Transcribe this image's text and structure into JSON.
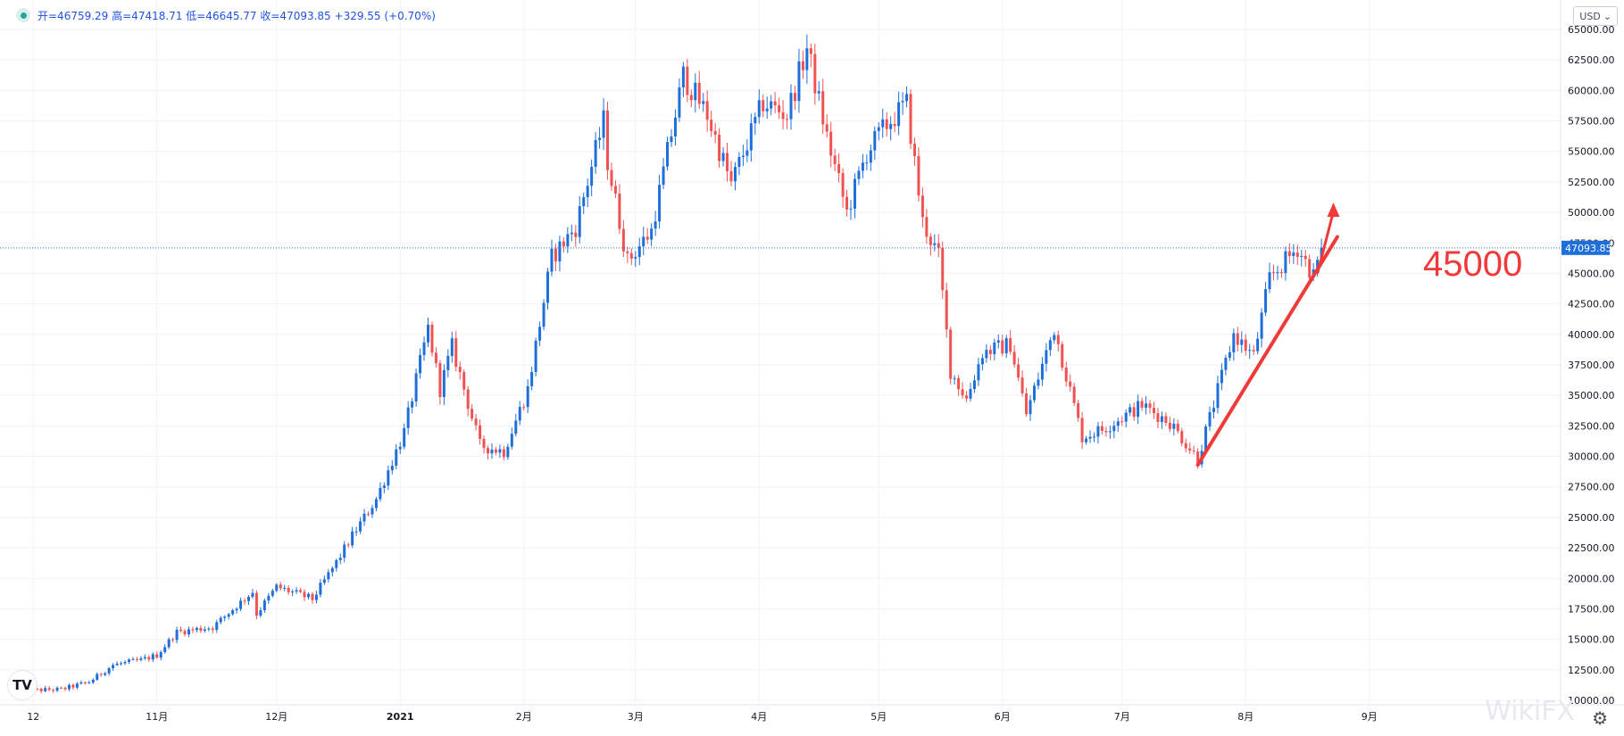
{
  "legend": {
    "text": "开=46759.29 高=47418.71 低=46645.77 收=47093.85 +329.55 (+0.70%)",
    "status_color": "#26a69a"
  },
  "currency": {
    "label": "USD"
  },
  "last_price": {
    "label": "47093.85",
    "value": 47093.85,
    "color": "#1e6fd9"
  },
  "annotation": {
    "label": "45000",
    "color": "#f03a3a"
  },
  "logo": {
    "label": "TV"
  },
  "watermark": {
    "label": "WikiFX"
  },
  "icons": {
    "settings": "gear-icon",
    "dropdown": "chevron-down-icon"
  },
  "chart_data": {
    "type": "candlestick",
    "colors": {
      "up": "#1e6fd9",
      "down": "#f05252",
      "grid": "#f0f3fa",
      "axis_text": "#131722"
    },
    "y_axis": {
      "ticks": [
        "65000.00",
        "62500.00",
        "60000.00",
        "57500.00",
        "55000.00",
        "52500.00",
        "50000.00",
        "47500.00",
        "45000.00",
        "42500.00",
        "40000.00",
        "37500.00",
        "35000.00",
        "32500.00",
        "30000.00",
        "27500.00",
        "25000.00",
        "22500.00",
        "20000.00",
        "17500.00",
        "15000.00",
        "12500.00",
        "10000.00"
      ],
      "range": [
        10000,
        65000
      ],
      "position": "right"
    },
    "x_axis": {
      "labels": [
        "12",
        "11月",
        "12月",
        "2021",
        "2月",
        "3月",
        "4月",
        "5月",
        "6月",
        "7月",
        "8月",
        "9月"
      ],
      "bold": [
        "2021"
      ]
    },
    "anchors": [
      {
        "date": "2020-09-28",
        "close": 10800
      },
      {
        "date": "2020-10-08",
        "close": 10900
      },
      {
        "date": "2020-10-15",
        "close": 11500
      },
      {
        "date": "2020-10-21",
        "close": 12900
      },
      {
        "date": "2020-10-28",
        "close": 13300
      },
      {
        "date": "2020-11-01",
        "close": 13700
      },
      {
        "date": "2020-11-06",
        "close": 15600
      },
      {
        "date": "2020-11-15",
        "close": 16000
      },
      {
        "date": "2020-11-25",
        "close": 18900
      },
      {
        "date": "2020-11-26",
        "close": 17100
      },
      {
        "date": "2020-12-01",
        "close": 19300
      },
      {
        "date": "2020-12-10",
        "close": 18300
      },
      {
        "date": "2020-12-16",
        "close": 21300
      },
      {
        "date": "2020-12-20",
        "close": 23500
      },
      {
        "date": "2020-12-26",
        "close": 26500
      },
      {
        "date": "2021-01-02",
        "close": 32000
      },
      {
        "date": "2021-01-08",
        "close": 40500
      },
      {
        "date": "2021-01-11",
        "close": 35500
      },
      {
        "date": "2021-01-14",
        "close": 39000
      },
      {
        "date": "2021-01-21",
        "close": 30900
      },
      {
        "date": "2021-01-27",
        "close": 30400
      },
      {
        "date": "2021-02-02",
        "close": 35500
      },
      {
        "date": "2021-02-08",
        "close": 46300
      },
      {
        "date": "2021-02-14",
        "close": 48800
      },
      {
        "date": "2021-02-21",
        "close": 57500
      },
      {
        "date": "2021-02-22",
        "close": 54200
      },
      {
        "date": "2021-02-27",
        "close": 46000
      },
      {
        "date": "2021-03-05",
        "close": 48500
      },
      {
        "date": "2021-03-09",
        "close": 54900
      },
      {
        "date": "2021-03-13",
        "close": 61200
      },
      {
        "date": "2021-03-19",
        "close": 58000
      },
      {
        "date": "2021-03-25",
        "close": 52300
      },
      {
        "date": "2021-04-02",
        "close": 59000
      },
      {
        "date": "2021-04-08",
        "close": 58000
      },
      {
        "date": "2021-04-13",
        "close": 63500
      },
      {
        "date": "2021-04-18",
        "close": 56200
      },
      {
        "date": "2021-04-23",
        "close": 50000
      },
      {
        "date": "2021-04-28",
        "close": 54900
      },
      {
        "date": "2021-05-03",
        "close": 57200
      },
      {
        "date": "2021-05-08",
        "close": 58900
      },
      {
        "date": "2021-05-12",
        "close": 49200
      },
      {
        "date": "2021-05-16",
        "close": 46400
      },
      {
        "date": "2021-05-19",
        "close": 37000
      },
      {
        "date": "2021-05-23",
        "close": 34700
      },
      {
        "date": "2021-05-27",
        "close": 38500
      },
      {
        "date": "2021-06-03",
        "close": 39200
      },
      {
        "date": "2021-06-07",
        "close": 33500
      },
      {
        "date": "2021-06-14",
        "close": 40500
      },
      {
        "date": "2021-06-21",
        "close": 31600
      },
      {
        "date": "2021-06-26",
        "close": 32200
      },
      {
        "date": "2021-07-06",
        "close": 34200
      },
      {
        "date": "2021-07-13",
        "close": 32800
      },
      {
        "date": "2021-07-20",
        "close": 29800
      },
      {
        "date": "2021-07-25",
        "close": 35400
      },
      {
        "date": "2021-07-29",
        "close": 40000
      },
      {
        "date": "2021-08-03",
        "close": 38200
      },
      {
        "date": "2021-08-07",
        "close": 44600
      },
      {
        "date": "2021-08-14",
        "close": 47100
      },
      {
        "date": "2021-08-18",
        "close": 44800
      },
      {
        "date": "2021-08-20",
        "close": 47093.85
      }
    ],
    "annotation_line": {
      "from": {
        "date": "2021-07-20",
        "price": 29300
      },
      "to": {
        "date": "2021-08-24",
        "price": 48000
      }
    },
    "annotation_arrow": {
      "from": {
        "date": "2021-08-19",
        "price": 45000
      },
      "to": {
        "date": "2021-08-23",
        "price": 50800
      }
    },
    "grid": true
  }
}
